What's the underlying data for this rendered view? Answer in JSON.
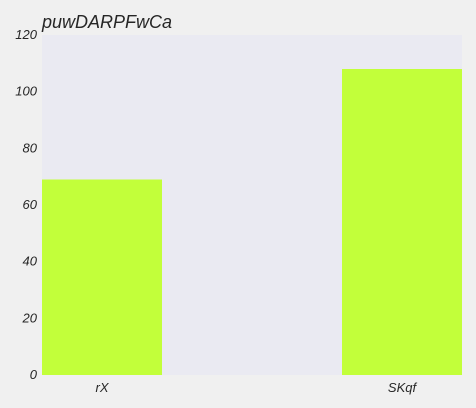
{
  "chart_data": {
    "type": "bar",
    "title": "puwDARPFwCa",
    "xlabel": "",
    "ylabel": "",
    "categories": [
      "rX",
      "SKqf"
    ],
    "values": [
      69,
      108
    ],
    "ylim": [
      0,
      120
    ],
    "yticks": [
      0,
      20,
      40,
      60,
      80,
      100,
      120
    ],
    "grid": false,
    "legend": "none",
    "colors": {
      "bar": "#c2ff3a",
      "plot_background": "#eaeaf2",
      "figure_background": "#f0f0f0"
    }
  }
}
